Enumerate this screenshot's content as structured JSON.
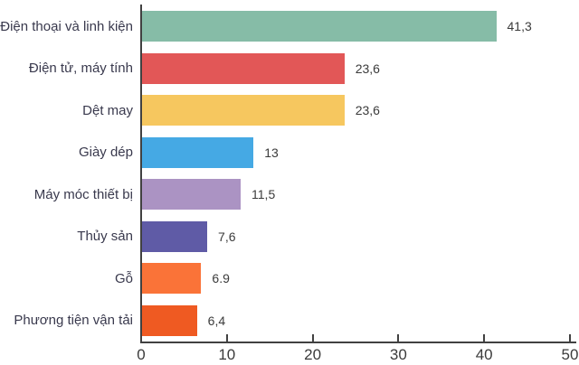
{
  "chart_data": {
    "type": "bar",
    "orientation": "horizontal",
    "title": "",
    "xlabel": "",
    "ylabel": "",
    "grid": false,
    "legend": false,
    "xlim": [
      0,
      50
    ],
    "categories": [
      "Điện thoại và linh kiện",
      "Điện tử, máy tính",
      "Dệt may",
      "Giày dép",
      "Máy móc thiết bị",
      "Thủy sản",
      "Gỗ",
      "Phương tiện vận tải"
    ],
    "values": [
      41.3,
      23.6,
      23.6,
      13,
      11.5,
      7.6,
      6.9,
      6.4
    ],
    "value_labels": [
      "41,3",
      "23,6",
      "23,6",
      "13",
      "11,5",
      "7,6",
      "6.9",
      "6,4"
    ],
    "bar_colors": [
      "#86bca7",
      "#e25757",
      "#f6c75f",
      "#45a9e4",
      "#ab93c3",
      "#5f5ba6",
      "#fa7338",
      "#ef5a22"
    ],
    "x_ticks": [
      10,
      20,
      30,
      40,
      50
    ],
    "x_tick_labels": [
      "0",
      "10",
      "20",
      "30",
      "40",
      "50"
    ],
    "x_tick_values": [
      0,
      10,
      20,
      30,
      40,
      50
    ]
  },
  "colors": {
    "axis": "#414141",
    "category_text": "#39394d",
    "value_text": "#3b3b3b",
    "background": "#ffffff"
  }
}
